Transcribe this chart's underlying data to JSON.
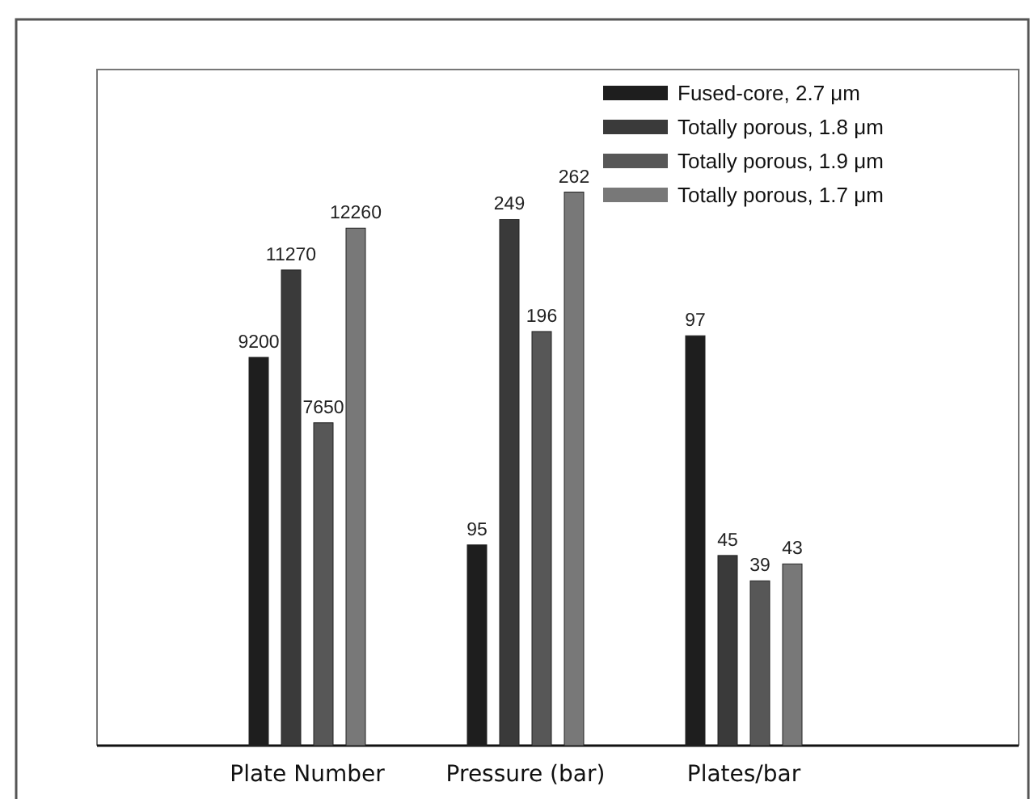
{
  "chart_data": [
    {
      "type": "bar",
      "categories": [
        "Plate Number"
      ],
      "ylim": [
        0,
        16020
      ],
      "tick_labels": "x",
      "data_labels": true,
      "legend": false,
      "series": [
        {
          "color": "#1e1e1e",
          "values": [
            9200
          ]
        },
        {
          "color": "#3a3a3a",
          "values": [
            11270
          ]
        },
        {
          "color": "#575757",
          "values": [
            7650
          ]
        },
        {
          "color": "#787878",
          "values": [
            12260
          ]
        }
      ]
    },
    {
      "type": "bar",
      "categories": [
        "Pressure (bar)"
      ],
      "ylim": [
        0,
        320
      ],
      "tick_labels": "x",
      "data_labels": true,
      "legend": false,
      "series": [
        {
          "color": "#1e1e1e",
          "values": [
            95
          ]
        },
        {
          "color": "#3a3a3a",
          "values": [
            249
          ]
        },
        {
          "color": "#575757",
          "values": [
            196
          ]
        },
        {
          "color": "#787878",
          "values": [
            262
          ]
        }
      ]
    },
    {
      "type": "bar",
      "categories": [
        "Plates/bar"
      ],
      "ylim": [
        0,
        160
      ],
      "tick_labels": "x",
      "data_labels": true,
      "legend": "top right",
      "series": [
        {
          "name": "Fused-core, 2.7 μm",
          "color": "#1e1e1e",
          "values": [
            97
          ]
        },
        {
          "name": "Totally porous, 1.8 μm",
          "color": "#3a3a3a",
          "values": [
            45
          ]
        },
        {
          "name": "Totally porous, 1.9 μm",
          "color": "#575757",
          "values": [
            39
          ]
        },
        {
          "name": "Totally porous, 1.7 μm",
          "color": "#787878",
          "values": [
            43
          ]
        }
      ]
    }
  ]
}
